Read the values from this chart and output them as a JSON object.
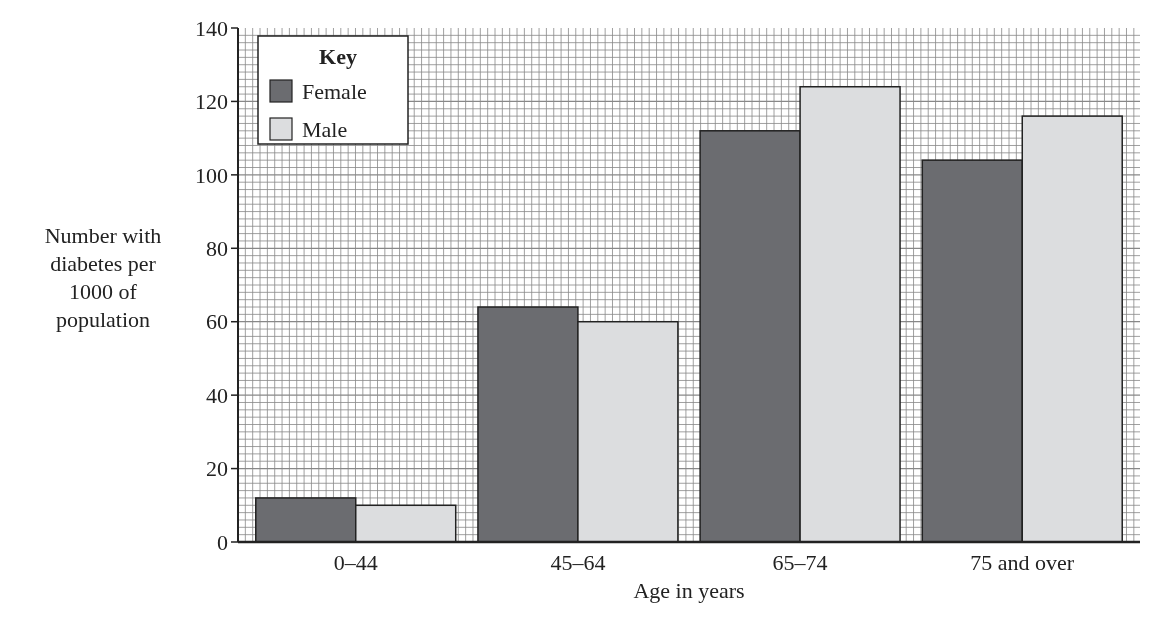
{
  "chart_data": {
    "type": "bar",
    "xlabel": "Age in years",
    "ylabel": "Number with diabetes per 1000 of population",
    "legend_title": "Key",
    "categories": [
      "0–44",
      "45–64",
      "65–74",
      "75 and over"
    ],
    "series": [
      {
        "name": "Female",
        "color": "#6b6c70",
        "values": [
          12,
          64,
          112,
          104
        ]
      },
      {
        "name": "Male",
        "color": "#dcdddf",
        "values": [
          10,
          60,
          124,
          116
        ]
      }
    ],
    "ylim": [
      0,
      140
    ],
    "yticks": [
      0,
      20,
      40,
      60,
      80,
      100,
      120,
      140
    ],
    "grid": true,
    "legend": "top left"
  }
}
